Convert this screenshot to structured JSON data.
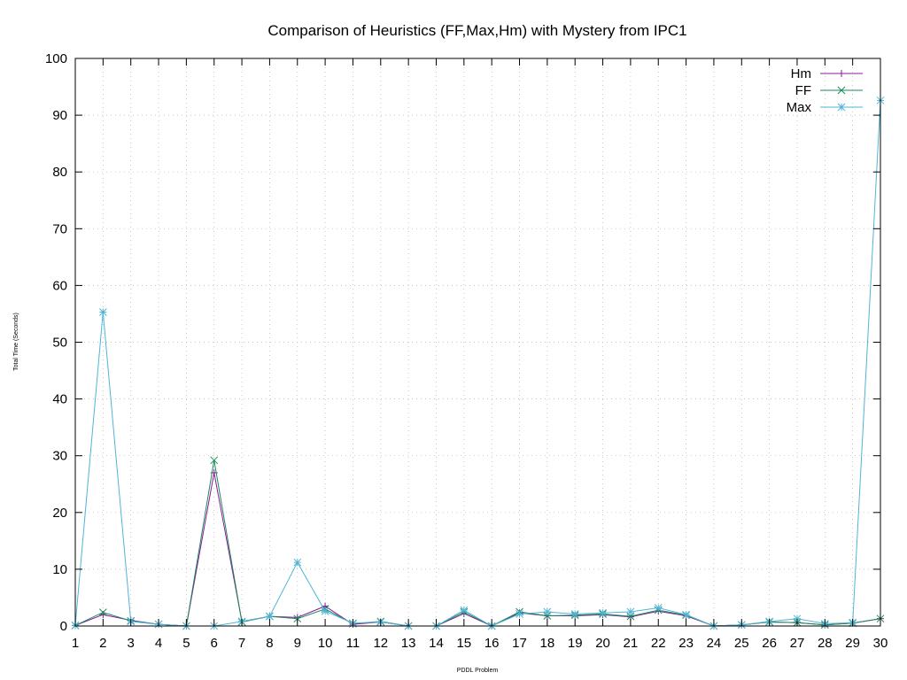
{
  "chart_data": {
    "type": "line",
    "title": "Comparison of Heuristics (FF,Max,Hm) with Mystery from IPC1",
    "xlabel": "PDDL Problem",
    "ylabel": "Total Time (Seconds)",
    "xlim": [
      1,
      30
    ],
    "ylim": [
      0,
      100
    ],
    "x": [
      1,
      2,
      3,
      4,
      5,
      6,
      7,
      8,
      9,
      10,
      11,
      12,
      13,
      14,
      15,
      16,
      17,
      18,
      19,
      20,
      21,
      22,
      23,
      24,
      25,
      26,
      27,
      28,
      29,
      30
    ],
    "x_ticks": [
      "1",
      "2",
      "3",
      "4",
      "5",
      "6",
      "7",
      "8",
      "9",
      "10",
      "11",
      "12",
      "13",
      "14",
      "15",
      "16",
      "17",
      "18",
      "19",
      "20",
      "21",
      "22",
      "23",
      "24",
      "25",
      "26",
      "27",
      "28",
      "29",
      "30"
    ],
    "y_ticks": [
      "0",
      "10",
      "20",
      "30",
      "40",
      "50",
      "60",
      "70",
      "80",
      "90",
      "100"
    ],
    "grid": true,
    "legend_position": "top-right",
    "series": [
      {
        "name": "Hm",
        "color": "#8b1a9b",
        "marker": "plus",
        "values": [
          0.1,
          2.0,
          1.0,
          0.3,
          0.0,
          27.0,
          0.8,
          1.7,
          1.5,
          3.5,
          0.3,
          0.7,
          0.0,
          0.0,
          2.2,
          0.0,
          2.3,
          1.8,
          1.8,
          2.0,
          1.6,
          2.6,
          1.8,
          0.0,
          0.2,
          0.7,
          0.6,
          0.2,
          0.5,
          1.3
        ]
      },
      {
        "name": "FF",
        "color": "#1a8a5a",
        "marker": "cross",
        "values": [
          0.1,
          2.4,
          0.9,
          0.3,
          0.0,
          29.2,
          0.7,
          1.7,
          1.3,
          3.0,
          0.4,
          0.8,
          0.0,
          0.0,
          2.5,
          0.0,
          2.5,
          1.8,
          1.9,
          2.1,
          1.7,
          2.8,
          1.9,
          0.0,
          0.2,
          0.7,
          0.6,
          0.2,
          0.5,
          1.3
        ]
      },
      {
        "name": "Max",
        "color": "#4fb5d6",
        "marker": "star",
        "values": [
          0.1,
          55.3,
          0.8,
          0.3,
          0.0,
          0.0,
          0.8,
          1.7,
          11.2,
          2.6,
          0.5,
          0.7,
          0.0,
          0.0,
          2.8,
          0.0,
          2.1,
          2.5,
          2.1,
          2.3,
          2.5,
          3.2,
          2.0,
          0.0,
          0.2,
          0.8,
          1.3,
          0.4,
          0.6,
          92.6
        ]
      }
    ]
  }
}
